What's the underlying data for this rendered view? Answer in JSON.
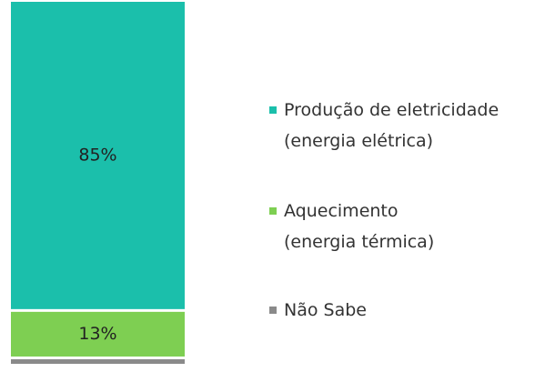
{
  "chart_data": {
    "type": "stacked_bar",
    "categories": [
      null
    ],
    "ylim": [
      0,
      100
    ],
    "series": [
      {
        "name": "Produção de eletricidade\n(energia elétrica)",
        "color": "#1bbfab",
        "values": [
          85
        ],
        "value_labels": [
          "85%"
        ]
      },
      {
        "name": "Aquecimento\n(energia térmica)",
        "color": "#7ecf52",
        "values": [
          13
        ],
        "value_labels": [
          "13%"
        ]
      },
      {
        "name": "Não Sabe",
        "color": "#8a8a8a",
        "values": [
          2
        ]
      }
    ]
  }
}
